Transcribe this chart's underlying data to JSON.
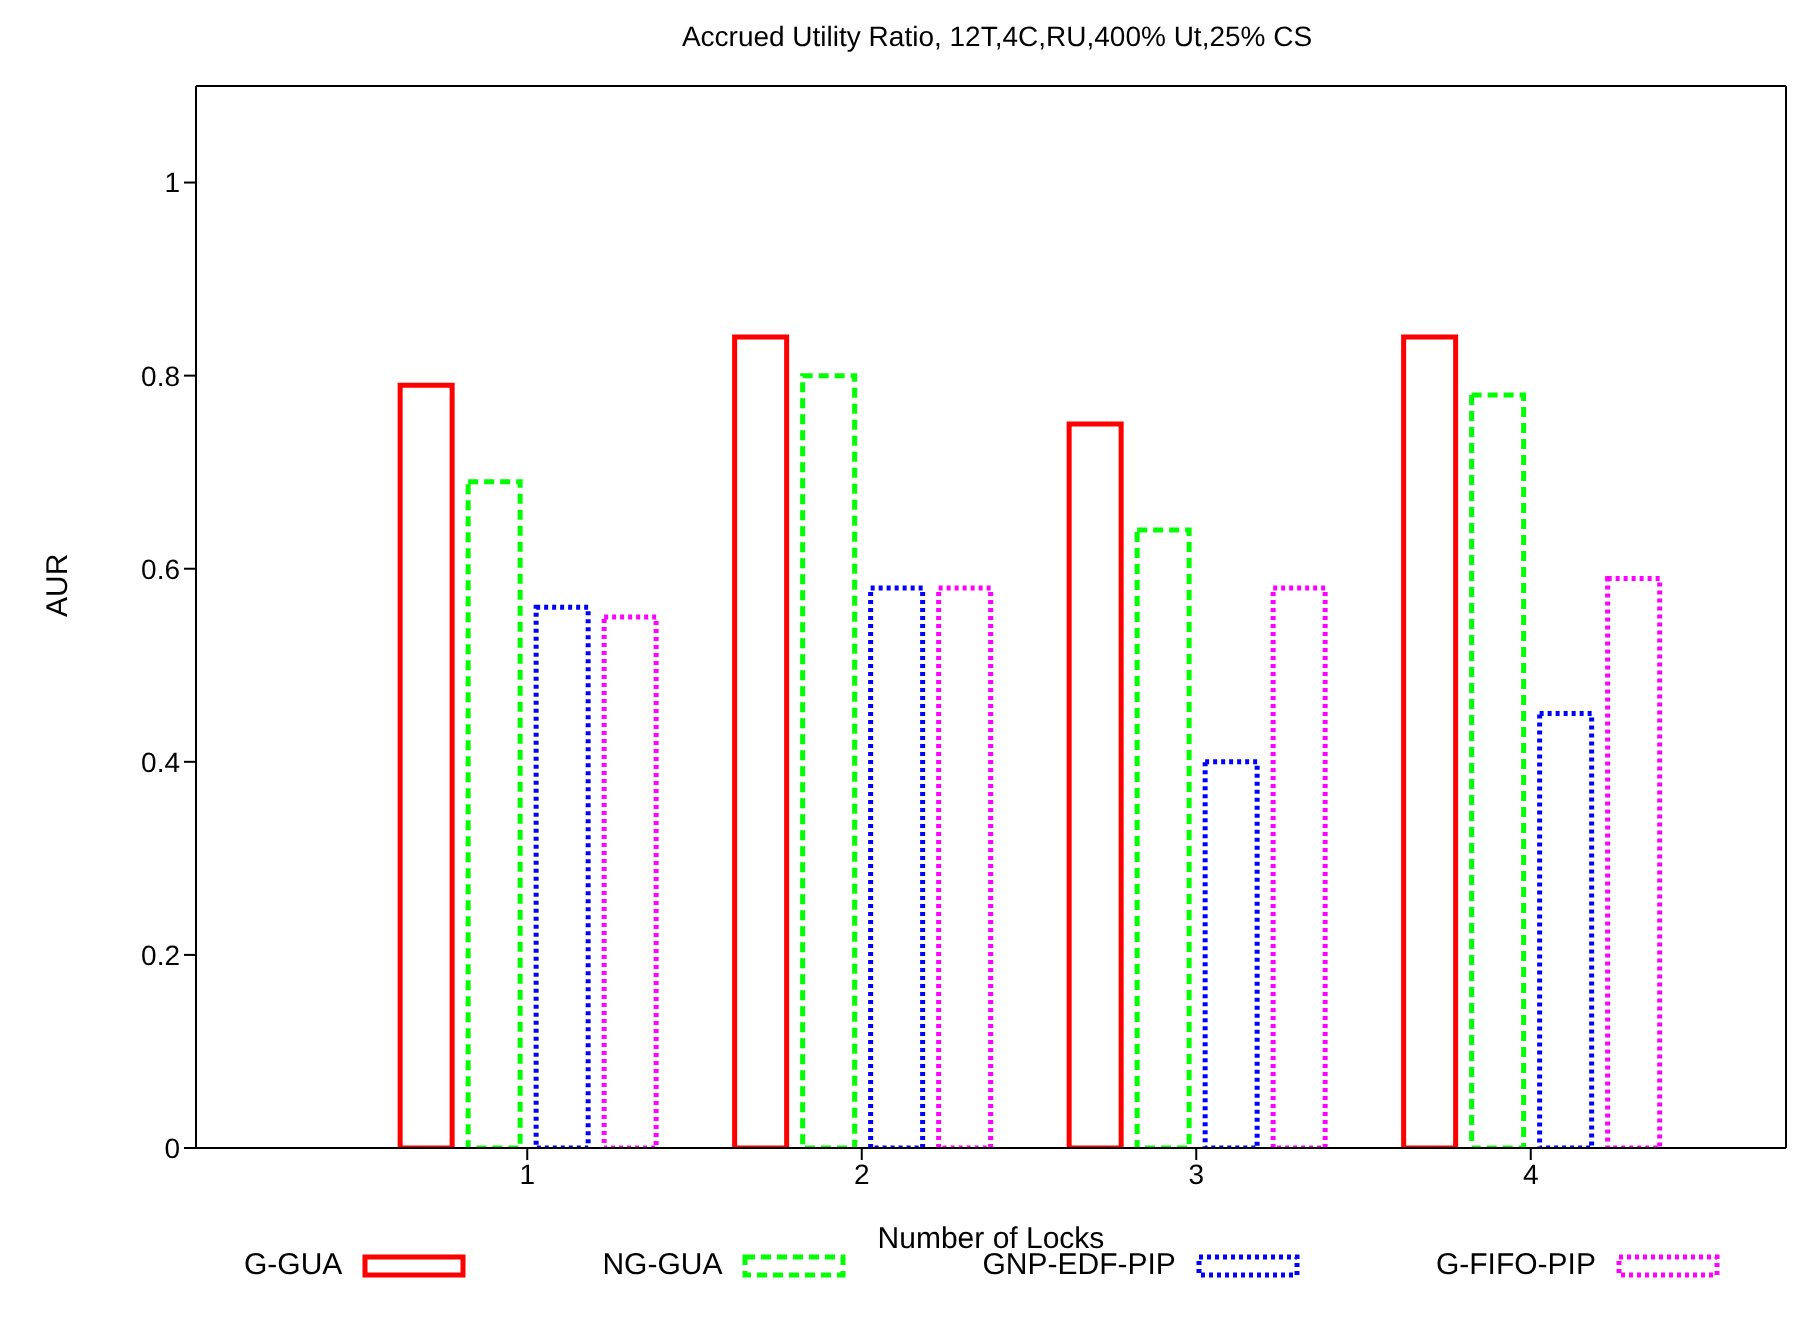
{
  "chart_data": {
    "type": "bar",
    "title": "Accrued Utility Ratio, 12T,4C,RU,400% Ut,25% CS",
    "xlabel": "Number of Locks",
    "ylabel": "AUR",
    "categories": [
      "1",
      "2",
      "3",
      "4"
    ],
    "series": [
      {
        "name": "G-GUA",
        "color": "#ff0000",
        "line_style": "solid",
        "values": [
          0.79,
          0.84,
          0.75,
          0.84
        ]
      },
      {
        "name": "NG-GUA",
        "color": "#00ff00",
        "line_style": "dashed",
        "values": [
          0.69,
          0.8,
          0.64,
          0.78
        ]
      },
      {
        "name": "GNP-EDF-PIP",
        "color": "#0000ff",
        "line_style": "dotted",
        "values": [
          0.56,
          0.58,
          0.4,
          0.45
        ]
      },
      {
        "name": "G-FIFO-PIP",
        "color": "#ff00ff",
        "line_style": "dotted",
        "values": [
          0.55,
          0.58,
          0.58,
          0.59
        ]
      }
    ],
    "ylim": [
      0,
      1.1
    ],
    "yticks": [
      0,
      0.2,
      0.4,
      0.6,
      0.8,
      1
    ],
    "grid": false,
    "legend": "bottom"
  }
}
